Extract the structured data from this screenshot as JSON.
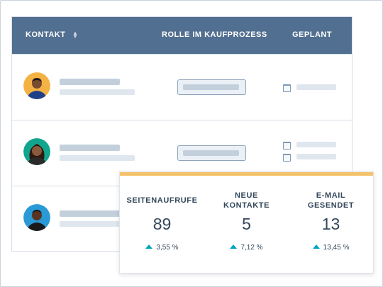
{
  "table": {
    "headers": {
      "contact": "KONTAKT",
      "role": "ROLLE IM KAUFPROZESS",
      "planned": "GEPLANT"
    },
    "rows": [
      {
        "avatar_bg": "#f5b244",
        "skin": "#7a4a2e",
        "shirt": "#1f3f8a",
        "hair": "#1b1b1b"
      },
      {
        "avatar_bg": "#11a58e",
        "skin": "#8b5a3c",
        "shirt": "#2a2a2a",
        "hair": "#2d1a10"
      },
      {
        "avatar_bg": "#2a9ad6",
        "skin": "#5a3422",
        "shirt": "#1a1a1a",
        "hair": "#111111"
      }
    ]
  },
  "stats": [
    {
      "label": "SEITENAUFRUFE",
      "value": "89",
      "change": "3,55 %"
    },
    {
      "label": "NEUE KONTAKTE",
      "value": "5",
      "change": "7,12 %"
    },
    {
      "label": "E-MAIL GESENDET",
      "value": "13",
      "change": "13,45 %"
    }
  ],
  "colors": {
    "header": "#516f90",
    "accent": "#f5c26b",
    "trend_up": "#00a4bd"
  }
}
